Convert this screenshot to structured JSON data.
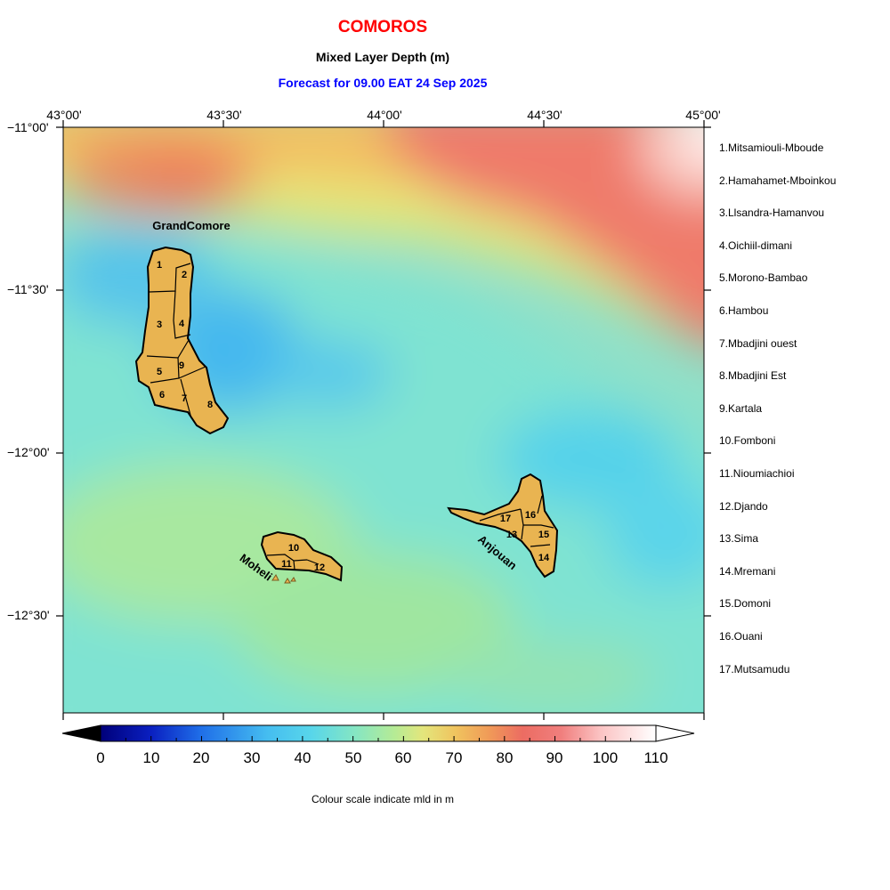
{
  "header": {
    "title": "COMOROS",
    "subtitle": "Mixed Layer Depth (m)",
    "forecast": "Forecast for  09.00 EAT 24 Sep 2025"
  },
  "axes": {
    "lon_labels": [
      "43°00'",
      "43°30'",
      "44°00'",
      "44°30'",
      "45°00'"
    ],
    "lat_labels": [
      "−11°00'",
      "−11°30'",
      "−12°00'",
      "−12°30'"
    ]
  },
  "islands": {
    "grand_comore": "GrandComore",
    "moheli": "Moheli",
    "anjouan": "Anjouan"
  },
  "district_numbers": [
    "1",
    "2",
    "3",
    "4",
    "5",
    "6",
    "7",
    "8",
    "9",
    "10",
    "11",
    "12",
    "13",
    "14",
    "15",
    "16",
    "17"
  ],
  "legend": [
    "1.Mitsamiouli-Mboude",
    "2.Hamahamet-Mboinkou",
    "3.Llsandra-Hamanvou",
    "4.Oichiil-dimani",
    "5.Morono-Bambao",
    "6.Hambou",
    "7.Mbadjini ouest",
    "8.Mbadjini Est",
    "9.Kartala",
    "10.Fomboni",
    "11.Nioumiachioi",
    "12.Djando",
    "13.Sima",
    "14.Mremani",
    "15.Domoni",
    "16.Ouani",
    "17.Mutsamudu"
  ],
  "colorbar": {
    "ticks": [
      "0",
      "10",
      "20",
      "30",
      "40",
      "50",
      "60",
      "70",
      "80",
      "90",
      "100",
      "110"
    ],
    "caption": "Colour scale indicate mld in m",
    "range": [
      0,
      110
    ]
  },
  "colors": {
    "title": "#ff0000",
    "forecast": "#0000ff",
    "land": "#e9b451"
  }
}
